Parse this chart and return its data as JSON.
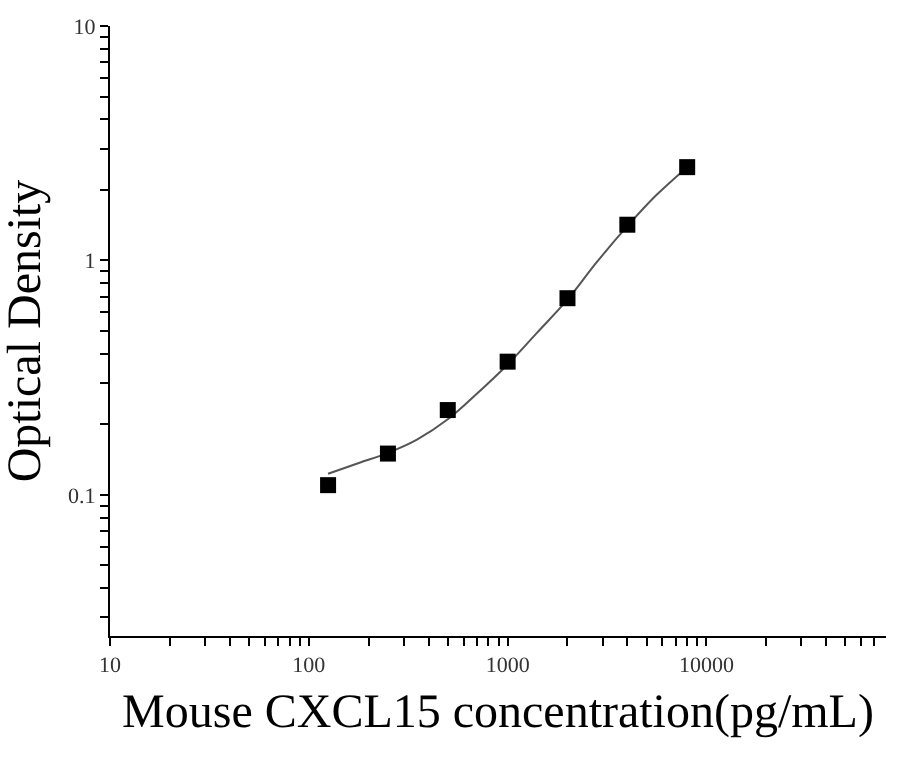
{
  "chart_data": {
    "type": "scatter",
    "xlabel": "Mouse CXCL15 concentration(pg/mL)",
    "ylabel": "Optical Density",
    "log": "xy",
    "marker": "square",
    "xlim": [
      10,
      80000
    ],
    "ylim": [
      0.025,
      10
    ],
    "xticks": [
      10,
      {
        "value": 20,
        "label": null
      },
      {
        "value": 30,
        "label": null
      },
      {
        "value": 40,
        "label": null
      },
      {
        "value": 50,
        "label": null
      },
      {
        "value": 60,
        "label": null
      },
      {
        "value": 70,
        "label": null
      },
      {
        "value": 80,
        "label": null
      },
      {
        "value": 90,
        "label": null
      },
      100,
      {
        "value": 200,
        "label": null
      },
      {
        "value": 300,
        "label": null
      },
      {
        "value": 400,
        "label": null
      },
      {
        "value": 500,
        "label": null
      },
      {
        "value": 600,
        "label": null
      },
      {
        "value": 700,
        "label": null
      },
      {
        "value": 800,
        "label": null
      },
      {
        "value": 900,
        "label": null
      },
      1000,
      {
        "value": 2000,
        "label": null
      },
      {
        "value": 3000,
        "label": null
      },
      {
        "value": 4000,
        "label": null
      },
      {
        "value": 5000,
        "label": null
      },
      {
        "value": 6000,
        "label": null
      },
      {
        "value": 7000,
        "label": null
      },
      {
        "value": 8000,
        "label": null
      },
      {
        "value": 9000,
        "label": null
      },
      10000,
      {
        "value": 20000,
        "label": null
      },
      {
        "value": 30000,
        "label": null
      },
      {
        "value": 40000,
        "label": null
      },
      {
        "value": 50000,
        "label": null
      },
      {
        "value": 60000,
        "label": null
      },
      {
        "value": 70000,
        "label": null
      }
    ],
    "yticks": [
      {
        "value": 0.03,
        "label": null
      },
      {
        "value": 0.04,
        "label": null
      },
      {
        "value": 0.05,
        "label": null
      },
      {
        "value": 0.06,
        "label": null
      },
      {
        "value": 0.07,
        "label": null
      },
      {
        "value": 0.08,
        "label": null
      },
      {
        "value": 0.09,
        "label": null
      },
      0.1,
      {
        "value": 0.2,
        "label": null
      },
      {
        "value": 0.3,
        "label": null
      },
      {
        "value": 0.4,
        "label": null
      },
      {
        "value": 0.5,
        "label": null
      },
      {
        "value": 0.6,
        "label": null
      },
      {
        "value": 0.7,
        "label": null
      },
      {
        "value": 0.8,
        "label": null
      },
      {
        "value": 0.9,
        "label": null
      },
      1,
      {
        "value": 2,
        "label": null
      },
      {
        "value": 3,
        "label": null
      },
      {
        "value": 4,
        "label": null
      },
      {
        "value": 5,
        "label": null
      },
      {
        "value": 6,
        "label": null
      },
      {
        "value": 7,
        "label": null
      },
      {
        "value": 8,
        "label": null
      },
      {
        "value": 9,
        "label": null
      },
      10
    ],
    "series": [
      {
        "type": "line",
        "color": "#555555",
        "marker": "none",
        "line_style": "solid",
        "x": [
          125,
          180,
          250,
          350,
          500,
          700,
          1000,
          1400,
          2000,
          2800,
          4000,
          5600,
          8000
        ],
        "values": [
          0.123,
          0.137,
          0.151,
          0.172,
          0.21,
          0.27,
          0.36,
          0.49,
          0.68,
          0.98,
          1.4,
          1.9,
          2.5
        ]
      },
      {
        "color": "#000000",
        "x": [
          125,
          250,
          500,
          1000,
          2000,
          4000,
          8000
        ],
        "values": [
          0.11,
          0.15,
          0.23,
          0.37,
          0.69,
          1.42,
          2.5
        ]
      }
    ]
  }
}
